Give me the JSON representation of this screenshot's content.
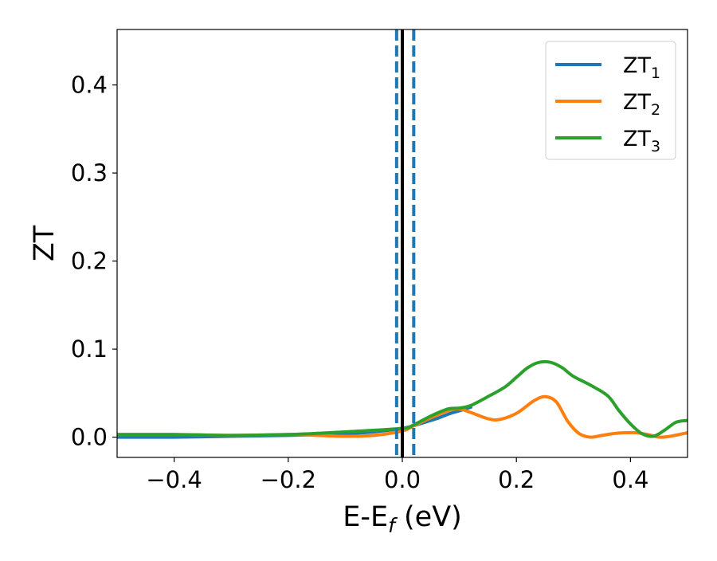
{
  "chart_data": {
    "type": "line",
    "title": "",
    "xlabel": "E-E",
    "xlabel_subscript": "f",
    "xlabel_unit": " (eV)",
    "ylabel": "ZT",
    "xlim": [
      -0.5,
      0.5
    ],
    "ylim": [
      -0.023,
      0.463
    ],
    "x_ticks": [
      -0.4,
      -0.2,
      0.0,
      0.2,
      0.4
    ],
    "x_tick_labels": [
      "−0.4",
      "−0.2",
      "0.0",
      "0.2",
      "0.4"
    ],
    "y_ticks": [
      0.0,
      0.1,
      0.2,
      0.3,
      0.4
    ],
    "y_tick_labels": [
      "0.0",
      "0.1",
      "0.2",
      "0.3",
      "0.4"
    ],
    "grid": false,
    "legend_position": "top-right",
    "vertical_lines": [
      {
        "x": -0.01,
        "style": "dashed",
        "color": "#1f77b4"
      },
      {
        "x": 0.0,
        "style": "solid",
        "color": "#000000"
      },
      {
        "x": 0.02,
        "style": "dashed",
        "color": "#1f77b4"
      }
    ],
    "series": [
      {
        "name": "ZT",
        "subscript": "1",
        "color": "#1f77b4",
        "x": [
          -0.5,
          -0.4,
          -0.3,
          -0.2,
          -0.1,
          -0.05,
          0.0,
          0.02,
          0.04,
          0.06,
          0.08,
          0.1,
          0.12
        ],
        "y": [
          0.0,
          0.0,
          0.001,
          0.002,
          0.004,
          0.006,
          0.01,
          0.013,
          0.017,
          0.021,
          0.026,
          0.03,
          0.034
        ]
      },
      {
        "name": "ZT",
        "subscript": "2",
        "color": "#ff7f0e",
        "x": [
          -0.5,
          -0.4,
          -0.3,
          -0.2,
          -0.15,
          -0.1,
          -0.05,
          0.0,
          0.02,
          0.05,
          0.08,
          0.1,
          0.12,
          0.15,
          0.17,
          0.2,
          0.23,
          0.25,
          0.27,
          0.29,
          0.31,
          0.33,
          0.35,
          0.37,
          0.39,
          0.41,
          0.43,
          0.45,
          0.47,
          0.5
        ],
        "y": [
          0.003,
          0.003,
          0.002,
          0.003,
          0.002,
          0.001,
          0.002,
          0.007,
          0.013,
          0.022,
          0.03,
          0.032,
          0.028,
          0.021,
          0.02,
          0.027,
          0.041,
          0.046,
          0.04,
          0.018,
          0.004,
          0.0,
          0.002,
          0.004,
          0.005,
          0.005,
          0.003,
          0.0,
          0.001,
          0.005
        ]
      },
      {
        "name": "ZT",
        "subscript": "3",
        "color": "#2ca02c",
        "x": [
          -0.5,
          -0.4,
          -0.3,
          -0.2,
          -0.1,
          0.0,
          0.02,
          0.05,
          0.08,
          0.1,
          0.12,
          0.15,
          0.18,
          0.2,
          0.22,
          0.24,
          0.26,
          0.28,
          0.3,
          0.33,
          0.36,
          0.38,
          0.4,
          0.42,
          0.44,
          0.46,
          0.48,
          0.5
        ],
        "y": [
          0.003,
          0.003,
          0.002,
          0.003,
          0.006,
          0.01,
          0.014,
          0.024,
          0.032,
          0.033,
          0.036,
          0.046,
          0.057,
          0.068,
          0.079,
          0.085,
          0.085,
          0.079,
          0.069,
          0.059,
          0.047,
          0.03,
          0.015,
          0.004,
          0.001,
          0.008,
          0.017,
          0.019
        ]
      }
    ]
  }
}
